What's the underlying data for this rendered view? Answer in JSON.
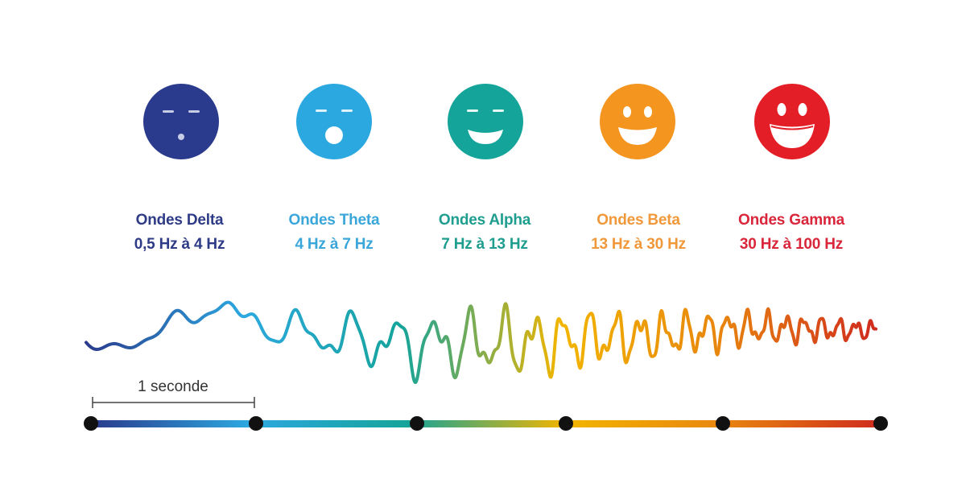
{
  "bands": [
    {
      "name": "Ondes Delta",
      "range": "0,5 Hz à 4 Hz",
      "color": "#2a3a8c",
      "text_color": "#2e3b86",
      "expression": "asleep"
    },
    {
      "name": "Ondes Theta",
      "range": "4 Hz à 7 Hz",
      "color": "#2ca8e0",
      "text_color": "#3aa6da",
      "expression": "yawning"
    },
    {
      "name": "Ondes Alpha",
      "range": "7 Hz à 13 Hz",
      "color": "#15a49a",
      "text_color": "#1f9e8f",
      "expression": "calm-smile"
    },
    {
      "name": "Ondes Beta",
      "range": "13 Hz à 30 Hz",
      "color": "#f4951f",
      "text_color": "#f0983a",
      "expression": "happy"
    },
    {
      "name": "Ondes Gamma",
      "range": "30 Hz à 100 Hz",
      "color": "#e41e26",
      "text_color": "#d9263a",
      "expression": "laughing"
    }
  ],
  "scale": {
    "label": "1 seconde"
  },
  "wave_gradient": [
    "#2a3a8c",
    "#2ca8e0",
    "#15a49a",
    "#f2b500",
    "#e8860e",
    "#cf2a1e"
  ],
  "timeline_node_color": "#111111"
}
